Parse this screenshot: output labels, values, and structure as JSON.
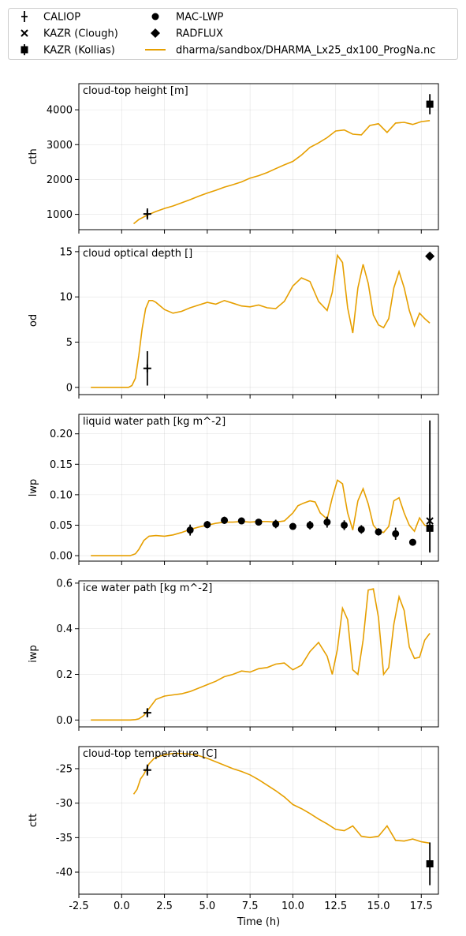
{
  "legend": {
    "items": [
      {
        "label": "CALIOP",
        "marker": "plus-errorbar"
      },
      {
        "label": "KAZR (Clough)",
        "marker": "x"
      },
      {
        "label": "KAZR (Kollias)",
        "marker": "square-errorbar"
      },
      {
        "label": "MAC-LWP",
        "marker": "circle"
      },
      {
        "label": "RADFLUX",
        "marker": "diamond"
      },
      {
        "label": "dharma/sandbox/DHARMA_Lx25_dx100_ProgNa.nc",
        "marker": "line"
      }
    ]
  },
  "colors": {
    "model_line": "#E69F00",
    "observations": "#000000"
  },
  "x_axis": {
    "label": "Time (h)",
    "xlim": [
      -2.5,
      18.5
    ],
    "ticks": [
      -2.5,
      0.0,
      2.5,
      5.0,
      7.5,
      10.0,
      12.5,
      15.0,
      17.5
    ],
    "tick_labels": [
      "-2.5",
      "0.0",
      "2.5",
      "5.0",
      "7.5",
      "10.0",
      "12.5",
      "15.0",
      "17.5"
    ]
  },
  "chart_data": [
    {
      "type": "line",
      "title": "cloud-top height [m]",
      "ylabel": "cth",
      "ylim": [
        560,
        4750
      ],
      "yticks": [
        1000,
        2000,
        3000,
        4000
      ],
      "ytick_labels": [
        "1000",
        "2000",
        "3000",
        "4000"
      ],
      "series": [
        {
          "name": "dharma/sandbox/DHARMA_Lx25_dx100_ProgNa.nc",
          "kind": "line",
          "x": [
            0.7,
            1.0,
            1.5,
            2.0,
            2.5,
            3.0,
            3.5,
            4.0,
            4.5,
            5.0,
            5.5,
            6.0,
            6.5,
            7.0,
            7.5,
            8.0,
            8.5,
            9.0,
            9.5,
            10.0,
            10.5,
            11.0,
            11.5,
            12.0,
            12.5,
            13.0,
            13.5,
            14.0,
            14.5,
            15.0,
            15.5,
            16.0,
            16.5,
            17.0,
            17.5,
            18.0
          ],
          "y": [
            730,
            850,
            980,
            1080,
            1170,
            1240,
            1330,
            1420,
            1520,
            1610,
            1690,
            1780,
            1850,
            1930,
            2040,
            2110,
            2200,
            2310,
            2420,
            2520,
            2700,
            2920,
            3050,
            3200,
            3390,
            3420,
            3300,
            3280,
            3550,
            3600,
            3350,
            3620,
            3640,
            3580,
            3660,
            3690
          ]
        },
        {
          "name": "CALIOP",
          "kind": "marker",
          "marker": "plus",
          "x": [
            1.5
          ],
          "y": [
            1010
          ],
          "yerr": [
            160
          ]
        },
        {
          "name": "KAZR (Kollias)",
          "kind": "marker",
          "marker": "square",
          "x": [
            18.0
          ],
          "y": [
            4160
          ],
          "yerr": [
            290
          ]
        }
      ]
    },
    {
      "type": "line",
      "title": "cloud optical depth []",
      "ylabel": "od",
      "ylim": [
        -0.8,
        15.6
      ],
      "yticks": [
        0,
        5,
        10,
        15
      ],
      "ytick_labels": [
        "0",
        "5",
        "10",
        "15"
      ],
      "series": [
        {
          "name": "dharma/sandbox/DHARMA_Lx25_dx100_ProgNa.nc",
          "kind": "line",
          "x": [
            -1.8,
            -1.0,
            0.0,
            0.4,
            0.6,
            0.8,
            1.0,
            1.2,
            1.4,
            1.6,
            1.8,
            2.0,
            2.5,
            3.0,
            3.5,
            4.0,
            4.5,
            5.0,
            5.5,
            6.0,
            6.5,
            7.0,
            7.5,
            8.0,
            8.5,
            9.0,
            9.5,
            10.0,
            10.5,
            11.0,
            11.5,
            12.0,
            12.3,
            12.6,
            12.9,
            13.2,
            13.5,
            13.8,
            14.1,
            14.4,
            14.7,
            15.0,
            15.3,
            15.6,
            15.9,
            16.2,
            16.5,
            16.8,
            17.1,
            17.4,
            17.7,
            18.0
          ],
          "y": [
            0.0,
            0.0,
            0.0,
            0.0,
            0.2,
            1.0,
            3.5,
            6.5,
            8.7,
            9.6,
            9.6,
            9.4,
            8.6,
            8.2,
            8.4,
            8.8,
            9.1,
            9.4,
            9.2,
            9.6,
            9.3,
            9.0,
            8.9,
            9.1,
            8.8,
            8.7,
            9.5,
            11.2,
            12.1,
            11.7,
            9.5,
            8.5,
            10.5,
            14.6,
            13.8,
            8.8,
            6.0,
            11.0,
            13.6,
            11.5,
            8.0,
            6.9,
            6.6,
            7.6,
            11.0,
            12.8,
            11.0,
            8.5,
            6.8,
            8.2,
            7.6,
            7.1
          ]
        },
        {
          "name": "CALIOP",
          "kind": "marker",
          "marker": "plus",
          "x": [
            1.5
          ],
          "y": [
            2.1
          ],
          "yerr": [
            1.9
          ]
        },
        {
          "name": "RADFLUX",
          "kind": "marker",
          "marker": "diamond",
          "x": [
            18.0
          ],
          "y": [
            14.5
          ],
          "yerr": [
            0
          ]
        }
      ]
    },
    {
      "type": "line",
      "title": "liquid water path [kg m^-2]",
      "ylabel": "lwp",
      "ylim": [
        -0.009,
        0.232
      ],
      "yticks": [
        0.0,
        0.05,
        0.1,
        0.15,
        0.2
      ],
      "ytick_labels": [
        "0.00",
        "0.05",
        "0.10",
        "0.15",
        "0.20"
      ],
      "series": [
        {
          "name": "dharma/sandbox/DHARMA_Lx25_dx100_ProgNa.nc",
          "kind": "line",
          "x": [
            -1.8,
            -1.0,
            0.0,
            0.5,
            0.8,
            1.0,
            1.3,
            1.6,
            2.0,
            2.5,
            3.0,
            3.5,
            4.0,
            4.5,
            5.0,
            5.5,
            6.0,
            6.5,
            7.0,
            7.5,
            8.0,
            8.5,
            9.0,
            9.5,
            10.0,
            10.3,
            10.6,
            11.0,
            11.3,
            11.6,
            12.0,
            12.3,
            12.6,
            12.9,
            13.2,
            13.5,
            13.8,
            14.1,
            14.4,
            14.7,
            15.0,
            15.3,
            15.6,
            15.9,
            16.2,
            16.5,
            16.8,
            17.1,
            17.4,
            17.7,
            18.0
          ],
          "y": [
            0.0,
            0.0,
            0.0,
            0.0,
            0.003,
            0.01,
            0.025,
            0.032,
            0.033,
            0.032,
            0.034,
            0.038,
            0.043,
            0.047,
            0.05,
            0.053,
            0.055,
            0.055,
            0.056,
            0.055,
            0.056,
            0.056,
            0.055,
            0.057,
            0.07,
            0.082,
            0.086,
            0.09,
            0.088,
            0.07,
            0.06,
            0.095,
            0.124,
            0.118,
            0.07,
            0.042,
            0.09,
            0.11,
            0.085,
            0.05,
            0.04,
            0.038,
            0.048,
            0.09,
            0.095,
            0.07,
            0.05,
            0.04,
            0.062,
            0.05,
            0.048
          ]
        },
        {
          "name": "MAC-LWP",
          "kind": "marker",
          "marker": "circle",
          "x": [
            4.0,
            5.0,
            6.0,
            7.0,
            8.0,
            9.0,
            10.0,
            11.0,
            12.0,
            13.0,
            14.0,
            15.0,
            16.0,
            17.0
          ],
          "y": [
            0.042,
            0.051,
            0.058,
            0.057,
            0.055,
            0.052,
            0.048,
            0.05,
            0.055,
            0.05,
            0.043,
            0.039,
            0.036,
            0.022
          ],
          "yerr": [
            0.009,
            0.006,
            0.006,
            0.005,
            0.005,
            0.007,
            0.005,
            0.007,
            0.009,
            0.008,
            0.007,
            0.006,
            0.01,
            0.003
          ]
        },
        {
          "name": "KAZR (Clough)",
          "kind": "marker",
          "marker": "x",
          "x": [
            18.0
          ],
          "y": [
            0.057
          ],
          "yerr": [
            0
          ]
        },
        {
          "name": "KAZR (Kollias)",
          "kind": "marker",
          "marker": "square",
          "x": [
            18.0
          ],
          "y": [
            0.045
          ],
          "yerr": [
            0.04
          ]
        },
        {
          "name": "KAZR (Kollias) range",
          "kind": "errorbar",
          "x": [
            18.0
          ],
          "y_low": [
            0.007
          ],
          "y_high": [
            0.222
          ]
        }
      ]
    },
    {
      "type": "line",
      "title": "ice water path [kg m^-2]",
      "ylabel": "iwp",
      "ylim": [
        -0.03,
        0.61
      ],
      "yticks": [
        0.0,
        0.2,
        0.4,
        0.6
      ],
      "ytick_labels": [
        "0.0",
        "0.2",
        "0.4",
        "0.6"
      ],
      "series": [
        {
          "name": "dharma/sandbox/DHARMA_Lx25_dx100_ProgNa.nc",
          "kind": "line",
          "x": [
            -1.8,
            -1.0,
            0.0,
            0.5,
            0.8,
            1.0,
            1.3,
            1.6,
            2.0,
            2.5,
            3.0,
            3.5,
            4.0,
            4.5,
            5.0,
            5.5,
            6.0,
            6.5,
            7.0,
            7.5,
            8.0,
            8.5,
            9.0,
            9.5,
            10.0,
            10.5,
            11.0,
            11.5,
            12.0,
            12.3,
            12.6,
            12.9,
            13.2,
            13.5,
            13.8,
            14.1,
            14.4,
            14.7,
            15.0,
            15.3,
            15.6,
            15.9,
            16.2,
            16.5,
            16.8,
            17.1,
            17.4,
            17.7,
            18.0
          ],
          "y": [
            0.0,
            0.0,
            0.0,
            0.0,
            0.002,
            0.005,
            0.02,
            0.05,
            0.09,
            0.105,
            0.11,
            0.115,
            0.125,
            0.14,
            0.155,
            0.17,
            0.19,
            0.2,
            0.215,
            0.21,
            0.225,
            0.23,
            0.245,
            0.25,
            0.22,
            0.24,
            0.3,
            0.34,
            0.28,
            0.2,
            0.31,
            0.49,
            0.44,
            0.22,
            0.2,
            0.35,
            0.57,
            0.575,
            0.45,
            0.2,
            0.23,
            0.42,
            0.54,
            0.48,
            0.32,
            0.27,
            0.275,
            0.35,
            0.38
          ]
        },
        {
          "name": "CALIOP",
          "kind": "marker",
          "marker": "plus",
          "x": [
            1.5
          ],
          "y": [
            0.032
          ],
          "yerr": [
            0.02
          ]
        }
      ]
    },
    {
      "type": "line",
      "title": "cloud-top temperature [C]",
      "ylabel": "ctt",
      "xlabel": "Time (h)",
      "ylim": [
        -43.2,
        -21.8
      ],
      "yticks": [
        -25,
        -30,
        -35,
        -40
      ],
      "ytick_labels": [
        "-25",
        "-30",
        "-35",
        "-40"
      ],
      "series": [
        {
          "name": "dharma/sandbox/DHARMA_Lx25_dx100_ProgNa.nc",
          "kind": "line",
          "x": [
            0.7,
            0.9,
            1.1,
            1.3,
            1.6,
            1.9,
            2.2,
            2.5,
            3.0,
            3.5,
            4.0,
            4.5,
            5.0,
            5.5,
            6.0,
            6.5,
            7.0,
            7.5,
            8.0,
            8.5,
            9.0,
            9.5,
            10.0,
            10.5,
            11.0,
            11.5,
            12.0,
            12.5,
            13.0,
            13.5,
            14.0,
            14.5,
            15.0,
            15.5,
            16.0,
            16.5,
            17.0,
            17.5,
            18.0
          ],
          "y": [
            -28.7,
            -28.0,
            -26.5,
            -25.8,
            -24.3,
            -23.5,
            -23.2,
            -23.0,
            -22.8,
            -22.8,
            -22.9,
            -23.1,
            -23.5,
            -24.0,
            -24.5,
            -25.0,
            -25.4,
            -25.9,
            -26.6,
            -27.4,
            -28.2,
            -29.1,
            -30.2,
            -30.8,
            -31.5,
            -32.3,
            -33.0,
            -33.8,
            -34.0,
            -33.3,
            -34.8,
            -35.0,
            -34.8,
            -33.3,
            -35.4,
            -35.5,
            -35.2,
            -35.6,
            -35.8
          ]
        },
        {
          "name": "CALIOP",
          "kind": "marker",
          "marker": "plus",
          "x": [
            1.5
          ],
          "y": [
            -25.2
          ],
          "yerr": [
            0.8
          ]
        },
        {
          "name": "KAZR (Kollias)",
          "kind": "marker",
          "marker": "square",
          "x": [
            18.0
          ],
          "y": [
            -38.8
          ],
          "yerr": [
            3.1
          ]
        }
      ]
    }
  ]
}
